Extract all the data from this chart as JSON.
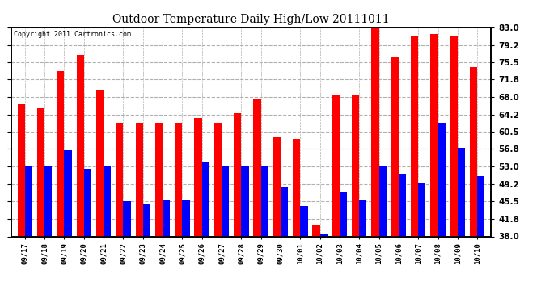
{
  "title": "Outdoor Temperature Daily High/Low 20111011",
  "copyright": "Copyright 2011 Cartronics.com",
  "categories": [
    "09/17",
    "09/18",
    "09/19",
    "09/20",
    "09/21",
    "09/22",
    "09/23",
    "09/24",
    "09/25",
    "09/26",
    "09/27",
    "09/28",
    "09/29",
    "09/30",
    "10/01",
    "10/02",
    "10/03",
    "10/04",
    "10/05",
    "10/06",
    "10/07",
    "10/08",
    "10/09",
    "10/10"
  ],
  "highs": [
    66.5,
    65.5,
    73.5,
    77.0,
    69.5,
    62.5,
    62.5,
    62.5,
    62.5,
    63.5,
    62.5,
    64.5,
    67.5,
    59.5,
    59.0,
    40.5,
    68.5,
    68.5,
    83.0,
    76.5,
    81.0,
    81.5,
    81.0,
    74.5
  ],
  "lows": [
    53.0,
    53.0,
    56.5,
    52.5,
    53.0,
    45.5,
    45.0,
    46.0,
    46.0,
    54.0,
    53.0,
    53.0,
    53.0,
    48.5,
    44.5,
    38.5,
    47.5,
    46.0,
    53.0,
    51.5,
    49.5,
    62.5,
    57.0,
    51.0
  ],
  "high_color": "#ff0000",
  "low_color": "#0000ff",
  "bg_color": "#ffffff",
  "grid_color": "#b0b0b0",
  "yticks": [
    38.0,
    41.8,
    45.5,
    49.2,
    53.0,
    56.8,
    60.5,
    64.2,
    68.0,
    71.8,
    75.5,
    79.2,
    83.0
  ],
  "ymin": 38.0,
  "ymax": 83.0,
  "bar_width": 0.38
}
